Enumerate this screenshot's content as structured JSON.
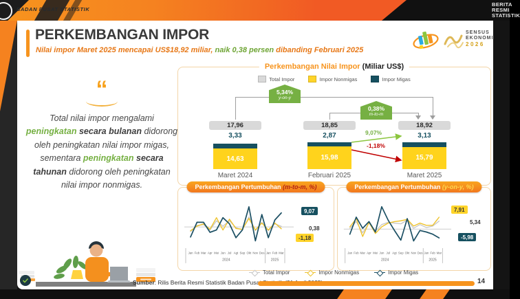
{
  "frame": {
    "brand": "BADAN PUSAT STATISTIK",
    "corner_lines": [
      "BERITA",
      "RESMI",
      "STATISTIK"
    ],
    "page_number": "14"
  },
  "header": {
    "title": "PERKEMBANGAN IMPOR",
    "subtitle_pre": "Nilai impor Maret 2025 mencapai US$18,92 miliar, ",
    "subtitle_highlight": "naik 0,38 persen",
    "subtitle_post": " dibanding Februari 2025",
    "sensus": {
      "line1": "SENSUS",
      "line2": "EKONOMI",
      "year": "2026"
    }
  },
  "quote": {
    "icon": "“",
    "runs": [
      {
        "text": "Total nilai impor mengalami ",
        "style": "normal"
      },
      {
        "text": "peningkatan",
        "style": "green"
      },
      {
        "text": " ",
        "style": "normal"
      },
      {
        "text": "secara bulanan",
        "style": "bold"
      },
      {
        "text": " didorong oleh peningkatan nilai impor migas, sementara ",
        "style": "normal"
      },
      {
        "text": "peningkatan",
        "style": "green"
      },
      {
        "text": " ",
        "style": "normal"
      },
      {
        "text": "secara tahunan",
        "style": "bold"
      },
      {
        "text": " didorong oleh peningkatan nilai impor nonmigas.",
        "style": "normal"
      }
    ]
  },
  "main_chart": {
    "title": "Perkembangan Nilai Impor",
    "unit": "(Miliar US$)",
    "legend": [
      {
        "label": "Total Impor"
      },
      {
        "label": "Impor Nonmigas"
      },
      {
        "label": "Impor Migas"
      }
    ],
    "badges": [
      {
        "value": "5,34%",
        "period": "y-on-y"
      },
      {
        "value": "0,38%",
        "period": "m-to-m"
      }
    ],
    "arrows": {
      "up": "9,07%",
      "down": "-1,18%"
    },
    "groups": [
      {
        "month": "Maret 2024",
        "total": "17,96",
        "migas": "3,33",
        "nonmigas": "14,63"
      },
      {
        "month": "Februari 2025",
        "total": "18,85",
        "migas": "2,87",
        "nonmigas": "15,98"
      },
      {
        "month": "Maret 2025",
        "total": "18,92",
        "migas": "3,13",
        "nonmigas": "15,79"
      }
    ]
  },
  "growth_left": {
    "title": "Perkembangan Pertumbuhan ",
    "suffix": "(m-to-m, %)",
    "labels": {
      "top": "9,07",
      "mid": "0,38",
      "bottom": "-1,18"
    }
  },
  "growth_right": {
    "title": "Perkembangan Pertumbuhan ",
    "suffix": "(y-on-y, %)",
    "labels": {
      "top": "7,91",
      "mid": "5,34",
      "bottom": "-5,98"
    }
  },
  "bottom_legend": [
    {
      "label": "Total Impor"
    },
    {
      "label": "Impor Nonmigas"
    },
    {
      "label": "Impor Migas"
    }
  ],
  "footer": {
    "source_label": "Sumber",
    "source_text": ": Rilis Berita Resmi Statistik Badan Pusat Statistik (21 April 2025)"
  },
  "colors": {
    "orange": "#F7941E",
    "yellow": "#FFD31C",
    "teal": "#165060",
    "green": "#76B043",
    "red": "#C00000",
    "gray_pill": "#D9D9D9"
  },
  "chart_data": [
    {
      "type": "bar",
      "title": "Perkembangan Nilai Impor (Miliar US$)",
      "categories": [
        "Maret 2024",
        "Februari 2025",
        "Maret 2025"
      ],
      "series": [
        {
          "name": "Total Impor",
          "values": [
            17.96,
            18.85,
            18.92
          ]
        },
        {
          "name": "Impor Nonmigas",
          "values": [
            14.63,
            15.98,
            15.79
          ]
        },
        {
          "name": "Impor Migas",
          "values": [
            3.33,
            2.87,
            3.13
          ]
        }
      ],
      "annotations": [
        {
          "label": "5,34%",
          "sub": "y-on-y",
          "from": "Maret 2024",
          "to": "Maret 2025",
          "series": "Total Impor"
        },
        {
          "label": "0,38%",
          "sub": "m-to-m",
          "from": "Februari 2025",
          "to": "Maret 2025",
          "series": "Total Impor"
        },
        {
          "label": "9,07%",
          "from": "Februari 2025",
          "to": "Maret 2025",
          "series": "Impor Migas"
        },
        {
          "label": "-1,18%",
          "from": "Februari 2025",
          "to": "Maret 2025",
          "series": "Impor Nonmigas"
        }
      ],
      "legend_position": "top"
    },
    {
      "type": "line",
      "title": "Perkembangan Pertumbuhan (m-to-m, %)",
      "x": [
        "Jan",
        "Feb",
        "Mar",
        "Apr",
        "Mei",
        "Jun",
        "Jul",
        "Agt",
        "Sep",
        "Okt",
        "Nov",
        "Des",
        "Jan",
        "Feb",
        "Mar"
      ],
      "x_groups": [
        {
          "label": "2024",
          "span": 12
        },
        {
          "label": "2025",
          "span": 3
        }
      ],
      "series": [
        {
          "name": "Total Impor",
          "color": "#c7c7c7",
          "width": 1.3,
          "values": [
            -3,
            1,
            1.5,
            -2,
            4,
            0.5,
            4,
            -0.5,
            -2,
            6.5,
            -2.5,
            3,
            -2.5,
            2,
            0.38
          ]
        },
        {
          "name": "Impor Nonmigas",
          "color": "#eec32e",
          "width": 1.4,
          "values": [
            -2.5,
            0.5,
            2,
            -1.5,
            6,
            -2,
            5,
            -1,
            -1.5,
            5.5,
            -2,
            2.5,
            -2,
            2.5,
            -1.18
          ]
        },
        {
          "name": "Impor Migas",
          "color": "#1b4f63",
          "width": 1.7,
          "values": [
            -6.5,
            3,
            3,
            -3.5,
            -2,
            6,
            2,
            -7,
            -2,
            13,
            -9,
            8,
            -7,
            4.5,
            9.07
          ]
        }
      ],
      "end_labels": [
        "9,07",
        "0,38",
        "-1,18"
      ]
    },
    {
      "type": "line",
      "title": "Perkembangan Pertumbuhan (y-on-y, %)",
      "x": [
        "Jan",
        "Feb",
        "Mar",
        "Apr",
        "Mei",
        "Jun",
        "Jul",
        "Agt",
        "Sep",
        "Okt",
        "Nov",
        "Des",
        "Jan",
        "Feb",
        "Mar"
      ],
      "x_groups": [
        {
          "label": "2024",
          "span": 12
        },
        {
          "label": "2025",
          "span": 3
        }
      ],
      "series": [
        {
          "name": "Total Impor",
          "color": "#c7c7c7",
          "width": 1.3,
          "values": [
            0.5,
            5,
            -2.5,
            4,
            -1.5,
            3,
            4.5,
            4,
            3.5,
            6,
            0.5,
            3,
            1,
            2,
            5.34
          ]
        },
        {
          "name": "Impor Nonmigas",
          "color": "#eec32e",
          "width": 1.4,
          "values": [
            1.5,
            7,
            -5,
            4.5,
            -3,
            1.5,
            4,
            5,
            5.5,
            6.5,
            2,
            4,
            2.5,
            2.5,
            7.91
          ]
        },
        {
          "name": "Impor Migas",
          "color": "#1b4f63",
          "width": 1.7,
          "values": [
            -3.5,
            8,
            0.5,
            5,
            -2,
            15,
            6,
            -1,
            -7.5,
            7,
            -8,
            -1,
            -2,
            -3.5,
            -5.98
          ]
        }
      ],
      "end_labels": [
        "7,91",
        "5,34",
        "-5,98"
      ]
    }
  ]
}
